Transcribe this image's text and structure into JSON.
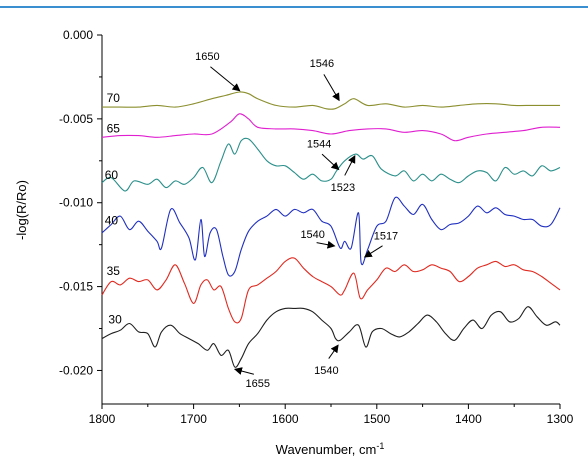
{
  "chart_data": {
    "type": "line",
    "title": "",
    "xlabel": "Wavenumber, cm",
    "xlabel_superscript": "-1",
    "ylabel": "-log(R/Ro)",
    "xlim": [
      1800,
      1300
    ],
    "ylim": [
      -0.022,
      0.0
    ],
    "x_ticks": [
      1800,
      1700,
      1600,
      1500,
      1400,
      1300
    ],
    "x_tick_labels": [
      "1800",
      "1700",
      "1600",
      "1500",
      "1400",
      "1300"
    ],
    "y_ticks": [
      0.0,
      -0.005,
      -0.01,
      -0.015,
      -0.02
    ],
    "y_tick_labels": [
      "0.000",
      "-0.005",
      "-0.010",
      "-0.015",
      "-0.020"
    ],
    "grid": false,
    "series": [
      {
        "name": "70",
        "color": "#8b8f2e",
        "x": [
          1800,
          1780,
          1760,
          1740,
          1720,
          1700,
          1680,
          1665,
          1650,
          1640,
          1630,
          1610,
          1590,
          1570,
          1555,
          1546,
          1535,
          1525,
          1510,
          1490,
          1470,
          1450,
          1430,
          1410,
          1390,
          1370,
          1350,
          1330,
          1310,
          1300
        ],
        "y": [
          -0.0043,
          -0.0043,
          -0.0043,
          -0.0042,
          -0.0043,
          -0.0041,
          -0.0038,
          -0.0036,
          -0.0034,
          -0.0035,
          -0.0038,
          -0.0042,
          -0.0043,
          -0.0042,
          -0.0044,
          -0.0044,
          -0.0041,
          -0.0038,
          -0.0042,
          -0.0041,
          -0.0043,
          -0.0042,
          -0.0043,
          -0.0042,
          -0.0041,
          -0.0041,
          -0.0042,
          -0.0042,
          -0.0042,
          -0.0042
        ]
      },
      {
        "name": "65",
        "color": "#e020d0",
        "x": [
          1800,
          1780,
          1760,
          1740,
          1720,
          1700,
          1680,
          1660,
          1650,
          1640,
          1630,
          1610,
          1590,
          1570,
          1550,
          1530,
          1510,
          1490,
          1470,
          1450,
          1430,
          1415,
          1400,
          1380,
          1360,
          1340,
          1320,
          1300
        ],
        "y": [
          -0.0061,
          -0.006,
          -0.006,
          -0.0061,
          -0.006,
          -0.0059,
          -0.0059,
          -0.0052,
          -0.0047,
          -0.005,
          -0.0055,
          -0.0056,
          -0.0056,
          -0.0057,
          -0.0059,
          -0.0057,
          -0.0056,
          -0.0056,
          -0.0058,
          -0.0057,
          -0.0059,
          -0.0063,
          -0.0061,
          -0.0059,
          -0.0058,
          -0.0057,
          -0.0055,
          -0.0055
        ]
      },
      {
        "name": "60",
        "color": "#2a8f8a",
        "x": [
          1800,
          1790,
          1775,
          1765,
          1750,
          1740,
          1730,
          1720,
          1710,
          1700,
          1690,
          1680,
          1670,
          1662,
          1655,
          1648,
          1640,
          1630,
          1620,
          1610,
          1600,
          1590,
          1580,
          1570,
          1560,
          1550,
          1544,
          1535,
          1523,
          1515,
          1505,
          1495,
          1480,
          1470,
          1460,
          1450,
          1440,
          1430,
          1420,
          1410,
          1400,
          1390,
          1380,
          1370,
          1360,
          1350,
          1340,
          1330,
          1320,
          1310,
          1300
        ],
        "y": [
          -0.0088,
          -0.0085,
          -0.0093,
          -0.0087,
          -0.0089,
          -0.0086,
          -0.0091,
          -0.0087,
          -0.0089,
          -0.0085,
          -0.0079,
          -0.0088,
          -0.0075,
          -0.0065,
          -0.0071,
          -0.0063,
          -0.0062,
          -0.0068,
          -0.0075,
          -0.0078,
          -0.0078,
          -0.0082,
          -0.0086,
          -0.0083,
          -0.0087,
          -0.0086,
          -0.0081,
          -0.0075,
          -0.0071,
          -0.0074,
          -0.0072,
          -0.008,
          -0.0084,
          -0.0081,
          -0.0087,
          -0.0083,
          -0.0087,
          -0.0083,
          -0.0086,
          -0.0088,
          -0.0084,
          -0.0081,
          -0.0082,
          -0.0087,
          -0.0079,
          -0.0083,
          -0.0081,
          -0.0084,
          -0.0078,
          -0.0081,
          -0.0079
        ]
      },
      {
        "name": "40",
        "color": "#2030c0",
        "x": [
          1800,
          1790,
          1780,
          1770,
          1760,
          1750,
          1740,
          1735,
          1725,
          1715,
          1705,
          1698,
          1692,
          1688,
          1682,
          1675,
          1668,
          1662,
          1655,
          1648,
          1640,
          1630,
          1620,
          1610,
          1600,
          1590,
          1580,
          1570,
          1560,
          1550,
          1540,
          1535,
          1528,
          1520,
          1517,
          1510,
          1500,
          1490,
          1480,
          1470,
          1460,
          1450,
          1440,
          1430,
          1420,
          1410,
          1400,
          1390,
          1380,
          1370,
          1360,
          1350,
          1340,
          1330,
          1320,
          1310,
          1300
        ],
        "y": [
          -0.0118,
          -0.0113,
          -0.0108,
          -0.0116,
          -0.0111,
          -0.0117,
          -0.0123,
          -0.0127,
          -0.0104,
          -0.0112,
          -0.0121,
          -0.0134,
          -0.011,
          -0.0132,
          -0.0118,
          -0.0116,
          -0.0132,
          -0.0143,
          -0.0141,
          -0.0128,
          -0.0117,
          -0.0111,
          -0.0108,
          -0.0104,
          -0.0108,
          -0.0104,
          -0.0106,
          -0.0104,
          -0.0111,
          -0.0114,
          -0.0127,
          -0.0123,
          -0.0127,
          -0.0106,
          -0.0136,
          -0.0128,
          -0.0114,
          -0.0111,
          -0.0097,
          -0.0102,
          -0.0107,
          -0.0101,
          -0.011,
          -0.0116,
          -0.0113,
          -0.0112,
          -0.0108,
          -0.0102,
          -0.0106,
          -0.0103,
          -0.0107,
          -0.0108,
          -0.011,
          -0.011,
          -0.0114,
          -0.0113,
          -0.0103
        ]
      },
      {
        "name": "35",
        "color": "#e02a20",
        "x": [
          1800,
          1790,
          1780,
          1770,
          1760,
          1750,
          1740,
          1730,
          1720,
          1710,
          1700,
          1692,
          1685,
          1678,
          1670,
          1662,
          1655,
          1648,
          1640,
          1630,
          1620,
          1610,
          1600,
          1590,
          1580,
          1570,
          1560,
          1550,
          1540,
          1535,
          1525,
          1518,
          1510,
          1500,
          1490,
          1480,
          1470,
          1460,
          1450,
          1440,
          1430,
          1420,
          1410,
          1400,
          1390,
          1380,
          1370,
          1360,
          1350,
          1340,
          1330,
          1320,
          1310,
          1300
        ],
        "y": [
          -0.0155,
          -0.0147,
          -0.0149,
          -0.0145,
          -0.0147,
          -0.0146,
          -0.0152,
          -0.0146,
          -0.0137,
          -0.0148,
          -0.016,
          -0.0149,
          -0.0146,
          -0.0152,
          -0.015,
          -0.0163,
          -0.0171,
          -0.0169,
          -0.0152,
          -0.0149,
          -0.0145,
          -0.0141,
          -0.0135,
          -0.0133,
          -0.0139,
          -0.0144,
          -0.0147,
          -0.015,
          -0.0155,
          -0.0152,
          -0.0142,
          -0.0157,
          -0.0152,
          -0.0146,
          -0.0139,
          -0.0141,
          -0.0137,
          -0.0141,
          -0.014,
          -0.0137,
          -0.0139,
          -0.0141,
          -0.0147,
          -0.0144,
          -0.0139,
          -0.0137,
          -0.0135,
          -0.0138,
          -0.0137,
          -0.014,
          -0.0141,
          -0.0144,
          -0.0148,
          -0.0152
        ]
      },
      {
        "name": "30",
        "color": "#202020",
        "x": [
          1800,
          1790,
          1780,
          1770,
          1760,
          1750,
          1742,
          1735,
          1725,
          1715,
          1705,
          1695,
          1685,
          1678,
          1670,
          1662,
          1655,
          1648,
          1640,
          1630,
          1620,
          1610,
          1600,
          1590,
          1580,
          1570,
          1560,
          1550,
          1545,
          1540,
          1530,
          1520,
          1512,
          1505,
          1495,
          1485,
          1475,
          1465,
          1455,
          1445,
          1435,
          1425,
          1415,
          1405,
          1395,
          1385,
          1375,
          1365,
          1355,
          1345,
          1335,
          1325,
          1315,
          1305,
          1300
        ],
        "y": [
          -0.0181,
          -0.0178,
          -0.0176,
          -0.0172,
          -0.0177,
          -0.0178,
          -0.0186,
          -0.0177,
          -0.0173,
          -0.0178,
          -0.0181,
          -0.0184,
          -0.0188,
          -0.0184,
          -0.0191,
          -0.0188,
          -0.0198,
          -0.0193,
          -0.0184,
          -0.0178,
          -0.017,
          -0.0165,
          -0.0163,
          -0.0163,
          -0.0163,
          -0.0165,
          -0.017,
          -0.0175,
          -0.0181,
          -0.0182,
          -0.0177,
          -0.0173,
          -0.0186,
          -0.0177,
          -0.0175,
          -0.0178,
          -0.018,
          -0.0177,
          -0.0172,
          -0.0167,
          -0.0171,
          -0.0178,
          -0.0182,
          -0.0175,
          -0.017,
          -0.0175,
          -0.0167,
          -0.0165,
          -0.0171,
          -0.0169,
          -0.0162,
          -0.0168,
          -0.0173,
          -0.0171,
          -0.0173
        ]
      }
    ],
    "series_labels": [
      {
        "text": "70",
        "x": 1795,
        "y": -0.004
      },
      {
        "text": "65",
        "x": 1795,
        "y": -0.0058
      },
      {
        "text": "60",
        "x": 1797,
        "y": -0.0086
      },
      {
        "text": "40",
        "x": 1797,
        "y": -0.0113
      },
      {
        "text": "35",
        "x": 1795,
        "y": -0.0143
      },
      {
        "text": "30",
        "x": 1793,
        "y": -0.0172
      }
    ],
    "annotations": [
      {
        "text": "1650",
        "label_x": 1685,
        "label_y": -0.0015,
        "target_x": 1648,
        "target_y": -0.0034
      },
      {
        "text": "1546",
        "label_x": 1560,
        "label_y": -0.0019,
        "target_x": 1540,
        "target_y": -0.004
      },
      {
        "text": "1544",
        "label_x": 1563,
        "label_y": -0.0067,
        "target_x": 1540,
        "target_y": -0.0081
      },
      {
        "text": "1523",
        "label_x": 1537,
        "label_y": -0.0093,
        "target_x": 1523,
        "target_y": -0.0071
      },
      {
        "text": "1540",
        "label_x": 1570,
        "label_y": -0.0121,
        "target_x": 1544,
        "target_y": -0.0126
      },
      {
        "text": "1517",
        "label_x": 1490,
        "label_y": -0.0122,
        "target_x": 1515,
        "target_y": -0.0133
      },
      {
        "text": "1655",
        "label_x": 1630,
        "label_y": -0.021,
        "target_x": 1657,
        "target_y": -0.0199
      },
      {
        "text": "1540",
        "label_x": 1555,
        "label_y": -0.0202,
        "target_x": 1541,
        "target_y": -0.0184
      }
    ]
  }
}
